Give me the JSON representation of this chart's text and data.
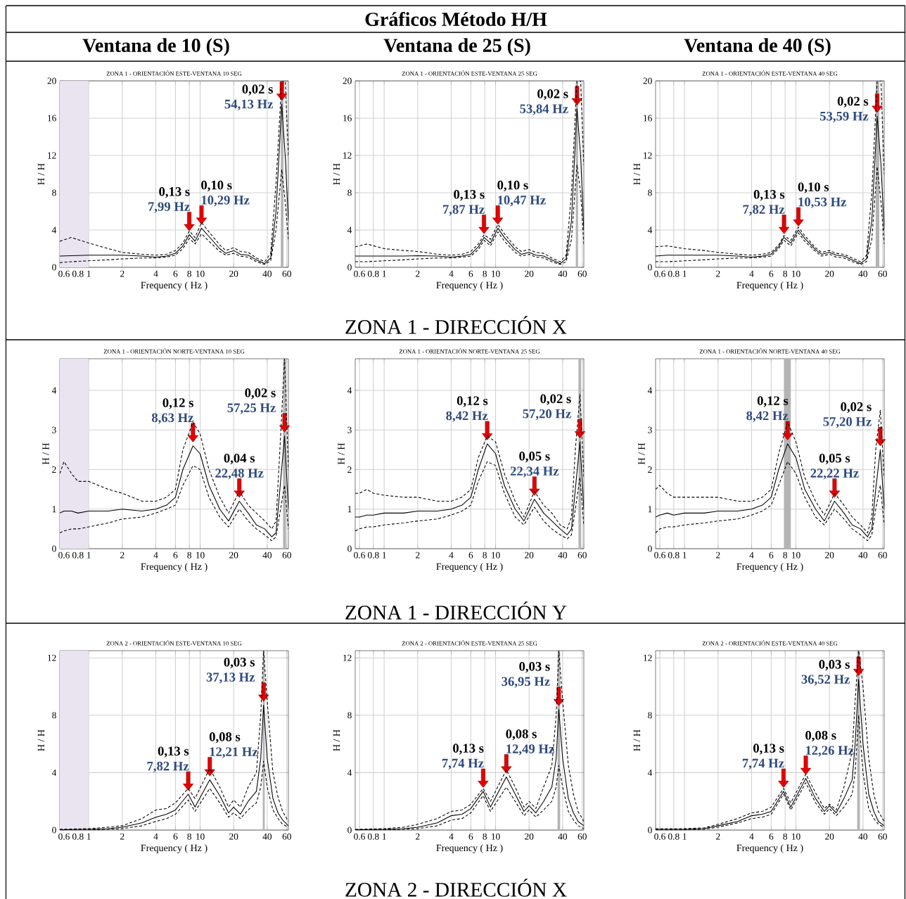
{
  "chart_data": [
    {
      "type": "other",
      "title": "Gráficos Método H/H",
      "annotations": [
        "Ventana de 10 (S)",
        "Ventana de 25 (S)",
        "Ventana de 40 (S)",
        "ZONA 1 - DIRECCIÓN X",
        "ZONA 1 - DIRECCIÓN Y",
        "ZONA 2 - DIRECCIÓN X"
      ]
    },
    {
      "type": "line",
      "title": "ZONA 1 - ORIENTACIÓN ESTE-VENTANA 10 SEG",
      "xlabel": "Frequency ( Hz )",
      "ylabel": "H / H",
      "log": "x",
      "grid": true,
      "xlim": [
        0.55,
        62
      ],
      "xticks": [
        0.6,
        0.8,
        1,
        2,
        4,
        6,
        8,
        10,
        20,
        40,
        60
      ],
      "ylim": [
        0,
        20
      ],
      "yticks": [
        0,
        4,
        8,
        12,
        16,
        20
      ],
      "x": [
        0.55,
        0.7,
        1,
        1.5,
        2,
        3,
        4,
        5,
        6,
        7,
        8,
        9,
        10.3,
        12,
        15,
        17,
        20,
        23,
        27,
        32,
        38,
        43,
        48,
        54,
        58,
        62
      ],
      "series": [
        {
          "color": "#000000",
          "line_style": "solid",
          "values": [
            1.2,
            1.25,
            1.3,
            1.3,
            1.3,
            1.2,
            1.1,
            1.2,
            1.5,
            2.3,
            3.5,
            2.8,
            4.2,
            3.3,
            2.0,
            1.5,
            1.8,
            1.4,
            1.3,
            0.8,
            0.4,
            1.0,
            6,
            17.5,
            12,
            5
          ]
        },
        {
          "color": "#000000",
          "line_style": "dashed",
          "values": [
            2.8,
            3.2,
            2.6,
            2.0,
            1.6,
            1.4,
            1.3,
            1.4,
            1.8,
            2.6,
            3.9,
            3.2,
            4.8,
            3.8,
            2.4,
            1.8,
            2.1,
            1.7,
            1.6,
            1.0,
            0.6,
            1.5,
            9,
            20,
            20,
            12
          ]
        },
        {
          "color": "#000000",
          "line_style": "dashed",
          "values": [
            0.5,
            0.6,
            0.7,
            0.8,
            0.9,
            1.0,
            1.0,
            1.1,
            1.3,
            2.0,
            3.1,
            2.5,
            3.6,
            2.8,
            1.7,
            1.3,
            1.5,
            1.2,
            1.1,
            0.6,
            0.3,
            0.7,
            4,
            10.5,
            7,
            3
          ]
        }
      ],
      "bands": [
        {
          "axis": "x",
          "from": 0.55,
          "to": 1,
          "color": "#e9e4ef"
        },
        {
          "axis": "x",
          "from": 53,
          "to": 56,
          "color": "#b4b4b4"
        }
      ],
      "annotations": [
        {
          "text": "0,13 s",
          "x": 7.99,
          "y": 3.5
        },
        {
          "text": "7,99 Hz",
          "x": 7.99,
          "y": 3.5
        },
        {
          "text": "0,10 s",
          "x": 10.29,
          "y": 4.2
        },
        {
          "text": "10,29 Hz",
          "x": 10.29,
          "y": 4.2
        },
        {
          "text": "0,02 s",
          "x": 54.13,
          "y": 17.5
        },
        {
          "text": "54,13 Hz",
          "x": 54.13,
          "y": 17.5
        }
      ]
    },
    {
      "type": "line",
      "title": "ZONA 1 - ORIENTACIÓN ESTE-VENTANA 25 SEG",
      "xlabel": "Frequency ( Hz )",
      "ylabel": "H / H",
      "log": "x",
      "grid": true,
      "xlim": [
        0.55,
        62
      ],
      "xticks": [
        0.6,
        0.8,
        1,
        2,
        4,
        6,
        8,
        10,
        20,
        40,
        60
      ],
      "ylim": [
        0,
        20
      ],
      "yticks": [
        0,
        4,
        8,
        12,
        16,
        20
      ],
      "x": [
        0.55,
        0.7,
        1,
        1.5,
        2,
        3,
        4,
        5,
        6,
        7,
        7.9,
        9,
        10.5,
        12,
        15,
        17,
        20,
        23,
        27,
        32,
        38,
        43,
        48,
        53.8,
        58,
        62
      ],
      "series": [
        {
          "color": "#000000",
          "line_style": "solid",
          "values": [
            1.2,
            1.2,
            1.2,
            1.2,
            1.25,
            1.2,
            1.1,
            1.2,
            1.4,
            2.2,
            3.2,
            2.6,
            4.2,
            3.2,
            1.9,
            1.4,
            1.6,
            1.3,
            1.2,
            0.8,
            0.4,
            0.9,
            5,
            17,
            12,
            4
          ]
        },
        {
          "color": "#000000",
          "line_style": "dashed",
          "values": [
            2.2,
            2.5,
            2.0,
            1.8,
            1.7,
            1.4,
            1.3,
            1.4,
            1.7,
            2.5,
            3.5,
            3.0,
            4.6,
            3.6,
            2.2,
            1.7,
            1.9,
            1.6,
            1.5,
            1.0,
            0.6,
            1.3,
            8,
            20,
            20,
            11
          ]
        },
        {
          "color": "#000000",
          "line_style": "dashed",
          "values": [
            0.6,
            0.6,
            0.7,
            0.8,
            0.9,
            1.0,
            1.0,
            1.1,
            1.2,
            1.9,
            2.9,
            2.3,
            3.8,
            2.8,
            1.6,
            1.2,
            1.4,
            1.1,
            1.0,
            0.6,
            0.3,
            0.6,
            3,
            11,
            8,
            2.5
          ]
        }
      ],
      "bands": [
        {
          "axis": "x",
          "from": 52.5,
          "to": 55,
          "color": "#b4b4b4"
        }
      ],
      "annotations": [
        {
          "text": "0,13 s",
          "x": 7.87,
          "y": 3.2
        },
        {
          "text": "7,87 Hz",
          "x": 7.87,
          "y": 3.2
        },
        {
          "text": "0,10 s",
          "x": 10.47,
          "y": 4.2
        },
        {
          "text": "10,47 Hz",
          "x": 10.47,
          "y": 4.2
        },
        {
          "text": "0,02 s",
          "x": 53.84,
          "y": 17
        },
        {
          "text": "53,84 Hz",
          "x": 53.84,
          "y": 17
        }
      ]
    },
    {
      "type": "line",
      "title": "ZONA 1 - ORIENTACIÓN ESTE-VENTANA 40 SEG",
      "xlabel": "Frequency ( Hz )",
      "ylabel": "H / H",
      "log": "x",
      "grid": true,
      "xlim": [
        0.55,
        62
      ],
      "xticks": [
        0.6,
        0.8,
        1,
        2,
        4,
        6,
        8,
        10,
        20,
        40,
        60
      ],
      "ylim": [
        0,
        20
      ],
      "yticks": [
        0,
        4,
        8,
        12,
        16,
        20
      ],
      "x": [
        0.55,
        0.7,
        1,
        1.5,
        2,
        3,
        4,
        5,
        6,
        7,
        7.8,
        9,
        10.5,
        12,
        15,
        17,
        20,
        23,
        27,
        32,
        38,
        43,
        48,
        53.6,
        58,
        62
      ],
      "series": [
        {
          "color": "#000000",
          "line_style": "solid",
          "values": [
            1.2,
            1.3,
            1.3,
            1.3,
            1.3,
            1.2,
            1.1,
            1.2,
            1.4,
            2.2,
            3.2,
            2.6,
            4.0,
            3.1,
            1.9,
            1.4,
            1.6,
            1.3,
            1.2,
            0.8,
            0.4,
            0.9,
            5,
            16.2,
            11,
            4
          ]
        },
        {
          "color": "#000000",
          "line_style": "dashed",
          "values": [
            2.2,
            2.3,
            2.0,
            1.8,
            1.6,
            1.4,
            1.3,
            1.4,
            1.6,
            2.4,
            3.4,
            2.9,
            4.3,
            3.4,
            2.1,
            1.6,
            1.8,
            1.5,
            1.4,
            1.0,
            0.6,
            1.3,
            8,
            20,
            20,
            10
          ]
        },
        {
          "color": "#000000",
          "line_style": "dashed",
          "values": [
            0.6,
            0.6,
            0.7,
            0.8,
            0.9,
            1.0,
            1.0,
            1.1,
            1.2,
            2.0,
            2.9,
            2.3,
            3.7,
            2.8,
            1.7,
            1.2,
            1.4,
            1.1,
            1.0,
            0.6,
            0.3,
            0.6,
            3,
            10.8,
            7,
            2.5
          ]
        }
      ],
      "bands": [
        {
          "axis": "x",
          "from": 52,
          "to": 56,
          "color": "#b4b4b4"
        }
      ],
      "annotations": [
        {
          "text": "0,13 s",
          "x": 7.82,
          "y": 3.2
        },
        {
          "text": "7,82 Hz",
          "x": 7.82,
          "y": 3.2
        },
        {
          "text": "0,10 s",
          "x": 10.53,
          "y": 4.0
        },
        {
          "text": "10,53 Hz",
          "x": 10.53,
          "y": 4.0
        },
        {
          "text": "0,02 s",
          "x": 53.59,
          "y": 16.2
        },
        {
          "text": "53,59 Hz",
          "x": 53.59,
          "y": 16.2
        }
      ]
    },
    {
      "type": "line",
      "title": "ZONA 1 - ORIENTACIÓN NORTE-VENTANA 10 SEG",
      "xlabel": "Frequency ( Hz )",
      "ylabel": "H / H",
      "log": "x",
      "grid": true,
      "xlim": [
        0.55,
        62
      ],
      "xticks": [
        0.6,
        0.8,
        1,
        2,
        4,
        6,
        8,
        10,
        20,
        40,
        60
      ],
      "ylim": [
        0,
        4.8
      ],
      "yticks": [
        0,
        1,
        2,
        3,
        4
      ],
      "x": [
        0.55,
        0.6,
        0.7,
        0.8,
        1,
        1.5,
        2,
        3,
        4,
        5,
        6,
        7,
        8.63,
        10,
        12,
        15,
        18,
        22.48,
        27,
        32,
        38,
        44,
        48,
        52,
        57.25,
        62
      ],
      "series": [
        {
          "color": "#000000",
          "line_style": "solid",
          "values": [
            0.9,
            0.95,
            0.95,
            0.9,
            0.95,
            0.95,
            1.0,
            0.95,
            1.0,
            1.1,
            1.3,
            2.0,
            2.6,
            2.4,
            1.6,
            1.0,
            0.7,
            1.2,
            0.9,
            0.6,
            0.5,
            0.3,
            0.4,
            1.5,
            2.85,
            1.0
          ]
        },
        {
          "color": "#000000",
          "line_style": "dashed",
          "values": [
            1.9,
            2.2,
            1.9,
            1.7,
            1.7,
            1.5,
            1.4,
            1.2,
            1.2,
            1.3,
            1.5,
            2.5,
            3.2,
            2.9,
            2.0,
            1.3,
            0.9,
            1.45,
            1.1,
            0.9,
            0.7,
            0.5,
            0.7,
            2.5,
            4.8,
            2.0
          ]
        },
        {
          "color": "#000000",
          "line_style": "dashed",
          "values": [
            0.4,
            0.45,
            0.5,
            0.5,
            0.55,
            0.65,
            0.75,
            0.8,
            0.9,
            1.0,
            1.1,
            1.6,
            2.1,
            2.0,
            1.3,
            0.8,
            0.55,
            1.0,
            0.7,
            0.5,
            0.35,
            0.2,
            0.3,
            0.9,
            1.6,
            0.5
          ]
        }
      ],
      "bands": [
        {
          "axis": "x",
          "from": 0.55,
          "to": 1,
          "color": "#e9e4ef"
        },
        {
          "axis": "x",
          "from": 55.5,
          "to": 59,
          "color": "#b4b4b4"
        }
      ],
      "annotations": [
        {
          "text": "0,12 s",
          "x": 8.63,
          "y": 2.6
        },
        {
          "text": "8,63 Hz",
          "x": 8.63,
          "y": 2.6
        },
        {
          "text": "0,04 s",
          "x": 22.48,
          "y": 1.2
        },
        {
          "text": "22,48 Hz",
          "x": 22.48,
          "y": 1.2
        },
        {
          "text": "0,02 s",
          "x": 57.25,
          "y": 2.85
        },
        {
          "text": "57,25 Hz",
          "x": 57.25,
          "y": 2.85
        }
      ]
    },
    {
      "type": "line",
      "title": "ZONA 1 - ORIENTACIÓN NORTE-VENTANA 25 SEG",
      "xlabel": "Frequency ( Hz )",
      "ylabel": "H / H",
      "log": "x",
      "grid": true,
      "xlim": [
        0.55,
        62
      ],
      "xticks": [
        0.6,
        0.8,
        1,
        2,
        4,
        6,
        8,
        10,
        20,
        40,
        60
      ],
      "ylim": [
        0,
        4.8
      ],
      "yticks": [
        0,
        1,
        2,
        3,
        4
      ],
      "x": [
        0.55,
        0.6,
        0.7,
        0.8,
        1,
        1.5,
        2,
        3,
        4,
        5,
        6,
        7,
        8.42,
        10,
        12,
        15,
        18,
        22.34,
        27,
        32,
        38,
        44,
        48,
        52,
        57.2,
        62
      ],
      "series": [
        {
          "color": "#000000",
          "line_style": "solid",
          "values": [
            0.8,
            0.8,
            0.85,
            0.85,
            0.9,
            0.9,
            0.95,
            0.95,
            1.0,
            1.1,
            1.3,
            2.0,
            2.65,
            2.4,
            1.6,
            1.0,
            0.7,
            1.25,
            0.9,
            0.7,
            0.5,
            0.35,
            0.5,
            1.5,
            2.7,
            1.0
          ]
        },
        {
          "color": "#000000",
          "line_style": "dashed",
          "values": [
            1.4,
            1.4,
            1.5,
            1.4,
            1.35,
            1.3,
            1.3,
            1.2,
            1.2,
            1.3,
            1.5,
            2.3,
            2.85,
            2.7,
            1.9,
            1.2,
            0.8,
            1.45,
            1.1,
            0.9,
            0.6,
            0.5,
            0.8,
            2.5,
            3.9,
            1.8
          ]
        },
        {
          "color": "#000000",
          "line_style": "dashed",
          "values": [
            0.45,
            0.5,
            0.55,
            0.55,
            0.6,
            0.65,
            0.7,
            0.75,
            0.85,
            0.95,
            1.1,
            1.7,
            2.2,
            2.1,
            1.4,
            0.8,
            0.6,
            1.05,
            0.7,
            0.5,
            0.35,
            0.25,
            0.35,
            1.0,
            1.8,
            0.6
          ]
        }
      ],
      "bands": [
        {
          "axis": "x",
          "from": 55.5,
          "to": 58.5,
          "color": "#b4b4b4"
        }
      ],
      "annotations": [
        {
          "text": "0,12 s",
          "x": 8.42,
          "y": 2.65
        },
        {
          "text": "8,42 Hz",
          "x": 8.42,
          "y": 2.65
        },
        {
          "text": "0,05 s",
          "x": 22.34,
          "y": 1.25
        },
        {
          "text": "22,34 Hz",
          "x": 22.34,
          "y": 1.25
        },
        {
          "text": "0,02 s",
          "x": 57.2,
          "y": 2.7
        },
        {
          "text": "57,20 Hz",
          "x": 57.2,
          "y": 2.7
        }
      ]
    },
    {
      "type": "line",
      "title": "ZONA 1 - ORIENTACIÓN NORTE-VENTANA 40 SEG",
      "xlabel": "Frequency ( Hz )",
      "ylabel": "H / H",
      "log": "x",
      "grid": true,
      "xlim": [
        0.55,
        62
      ],
      "xticks": [
        0.6,
        0.8,
        1,
        2,
        4,
        6,
        8,
        10,
        20,
        40,
        60
      ],
      "ylim": [
        0,
        4.8
      ],
      "yticks": [
        0,
        1,
        2,
        3,
        4
      ],
      "x": [
        0.55,
        0.6,
        0.7,
        0.8,
        1,
        1.5,
        2,
        3,
        4,
        5,
        6,
        7,
        8.42,
        10,
        12,
        15,
        18,
        22.22,
        27,
        32,
        38,
        44,
        48,
        52,
        57.2,
        62
      ],
      "series": [
        {
          "color": "#000000",
          "line_style": "solid",
          "values": [
            0.8,
            0.85,
            0.9,
            0.85,
            0.9,
            0.9,
            0.95,
            0.95,
            1.0,
            1.1,
            1.3,
            2.0,
            2.65,
            2.3,
            1.5,
            1.0,
            0.7,
            1.2,
            0.9,
            0.6,
            0.5,
            0.3,
            0.5,
            1.5,
            2.5,
            1.0
          ]
        },
        {
          "color": "#000000",
          "line_style": "dashed",
          "values": [
            1.5,
            1.6,
            1.4,
            1.3,
            1.3,
            1.3,
            1.3,
            1.2,
            1.2,
            1.3,
            1.5,
            2.4,
            3.2,
            2.7,
            1.8,
            1.2,
            0.85,
            1.4,
            1.1,
            0.8,
            0.6,
            0.4,
            0.8,
            2.5,
            3.5,
            1.8
          ]
        },
        {
          "color": "#000000",
          "line_style": "dashed",
          "values": [
            0.4,
            0.5,
            0.55,
            0.55,
            0.6,
            0.65,
            0.7,
            0.75,
            0.85,
            0.95,
            1.1,
            1.6,
            2.2,
            1.9,
            1.3,
            0.8,
            0.6,
            1.0,
            0.75,
            0.5,
            0.35,
            0.2,
            0.35,
            1.0,
            1.6,
            0.6
          ]
        }
      ],
      "bands": [
        {
          "axis": "x",
          "from": 7.8,
          "to": 9,
          "color": "#b4b4b4"
        }
      ],
      "annotations": [
        {
          "text": "0,12 s",
          "x": 8.42,
          "y": 2.65
        },
        {
          "text": "8,42 Hz",
          "x": 8.42,
          "y": 2.65
        },
        {
          "text": "0,05 s",
          "x": 22.22,
          "y": 1.2
        },
        {
          "text": "22,22 Hz",
          "x": 22.22,
          "y": 1.2
        },
        {
          "text": "0,02 s",
          "x": 57.2,
          "y": 2.5
        },
        {
          "text": "57,20 Hz",
          "x": 57.2,
          "y": 2.5
        }
      ]
    },
    {
      "type": "line",
      "title": "ZONA 2 - ORIENTACIÓN ESTE-VENTANA 10 SEG",
      "xlabel": "Frequency ( Hz )",
      "ylabel": "H / H",
      "log": "x",
      "grid": true,
      "xlim": [
        0.55,
        62
      ],
      "xticks": [
        0.6,
        0.8,
        1,
        2,
        4,
        6,
        8,
        10,
        20,
        40,
        60
      ],
      "ylim": [
        0,
        12.5
      ],
      "yticks": [
        0,
        4,
        8,
        12
      ],
      "x": [
        0.55,
        1,
        1.5,
        2,
        3,
        4,
        5,
        6,
        7.82,
        9,
        12.21,
        15,
        18,
        20,
        23,
        27,
        32,
        35,
        37.13,
        40,
        45,
        50,
        55,
        62
      ],
      "series": [
        {
          "color": "#000000",
          "line_style": "solid",
          "values": [
            0.02,
            0.05,
            0.1,
            0.2,
            0.5,
            0.9,
            1.1,
            1.4,
            2.5,
            1.6,
            3.5,
            2.4,
            1.2,
            1.6,
            1.1,
            2.0,
            2.7,
            5,
            8.7,
            5,
            2.2,
            1.2,
            0.7,
            0.3
          ]
        },
        {
          "color": "#000000",
          "line_style": "dashed",
          "values": [
            0.05,
            0.1,
            0.2,
            0.3,
            0.8,
            1.4,
            1.5,
            1.9,
            2.9,
            2.2,
            4.3,
            3.0,
            1.6,
            2.1,
            1.6,
            3,
            4.0,
            8,
            12.5,
            9,
            4,
            2.3,
            1.3,
            0.6
          ]
        },
        {
          "color": "#000000",
          "line_style": "dashed",
          "values": [
            0.01,
            0.02,
            0.05,
            0.1,
            0.3,
            0.6,
            0.8,
            1.1,
            2.1,
            1.3,
            2.9,
            1.9,
            0.9,
            1.2,
            0.8,
            1.4,
            1.9,
            3,
            4.8,
            3,
            1.4,
            0.8,
            0.4,
            0.2
          ]
        }
      ],
      "bands": [
        {
          "axis": "x",
          "from": 0.55,
          "to": 1,
          "color": "#e9e4ef"
        },
        {
          "axis": "x",
          "from": 36.5,
          "to": 38,
          "color": "#b4b4b4"
        }
      ],
      "annotations": [
        {
          "text": "0,13 s",
          "x": 7.82,
          "y": 2.5
        },
        {
          "text": "7,82 Hz",
          "x": 7.82,
          "y": 2.5
        },
        {
          "text": "0,08 s",
          "x": 12.21,
          "y": 3.5
        },
        {
          "text": "12,21 Hz",
          "x": 12.21,
          "y": 3.5
        },
        {
          "text": "0,03 s",
          "x": 37.13,
          "y": 8.7
        },
        {
          "text": "37,13 Hz",
          "x": 37.13,
          "y": 8.7
        }
      ]
    },
    {
      "type": "line",
      "title": "ZONA 2 - ORIENTACIÓN ESTE-VENTANA 25 SEG",
      "xlabel": "Frequency ( Hz )",
      "ylabel": "H / H",
      "log": "x",
      "grid": true,
      "xlim": [
        0.55,
        62
      ],
      "xticks": [
        0.6,
        0.8,
        1,
        2,
        4,
        6,
        8,
        10,
        20,
        40,
        60
      ],
      "ylim": [
        0,
        12.5
      ],
      "yticks": [
        0,
        4,
        8,
        12
      ],
      "x": [
        0.55,
        1,
        1.5,
        2,
        3,
        4,
        5,
        6,
        7.74,
        9,
        12.49,
        15,
        18,
        20,
        23,
        27,
        32,
        35,
        36.95,
        40,
        45,
        50,
        55,
        62
      ],
      "series": [
        {
          "color": "#000000",
          "line_style": "solid",
          "values": [
            0.02,
            0.05,
            0.1,
            0.2,
            0.5,
            1.0,
            1.1,
            1.5,
            2.7,
            1.6,
            3.7,
            2.5,
            1.3,
            1.7,
            1.2,
            2.0,
            3.0,
            5,
            8.4,
            5,
            2.2,
            1.2,
            0.6,
            0.3
          ]
        },
        {
          "color": "#000000",
          "line_style": "dashed",
          "values": [
            0.05,
            0.1,
            0.2,
            0.4,
            0.8,
            1.3,
            1.4,
            1.8,
            2.9,
            2.0,
            4.2,
            3.0,
            1.6,
            2.0,
            1.5,
            3.0,
            4.5,
            8,
            12.5,
            9,
            4.5,
            2.5,
            1.3,
            0.6
          ]
        },
        {
          "color": "#000000",
          "line_style": "dashed",
          "values": [
            0.01,
            0.02,
            0.05,
            0.1,
            0.3,
            0.7,
            0.8,
            1.2,
            2.4,
            1.3,
            3.0,
            2.0,
            1.0,
            1.4,
            0.9,
            1.4,
            2.0,
            3,
            4.5,
            3,
            1.3,
            0.7,
            0.3,
            0.1
          ]
        }
      ],
      "bands": [
        {
          "axis": "x",
          "from": 36,
          "to": 38,
          "color": "#b4b4b4"
        }
      ],
      "annotations": [
        {
          "text": "0,13 s",
          "x": 7.74,
          "y": 2.7
        },
        {
          "text": "7,74 Hz",
          "x": 7.74,
          "y": 2.7
        },
        {
          "text": "0,08 s",
          "x": 12.49,
          "y": 3.7
        },
        {
          "text": "12,49 Hz",
          "x": 12.49,
          "y": 3.7
        },
        {
          "text": "0,03 s",
          "x": 36.95,
          "y": 8.4
        },
        {
          "text": "36,95 Hz",
          "x": 36.95,
          "y": 8.4
        }
      ]
    },
    {
      "type": "line",
      "title": "ZONA 2 - ORIENTACIÓN ESTE-VENTANA 40 SEG",
      "xlabel": "Frequency ( Hz )",
      "ylabel": "H / H",
      "log": "x",
      "grid": true,
      "xlim": [
        0.55,
        62
      ],
      "xticks": [
        0.6,
        0.8,
        1,
        2,
        4,
        6,
        8,
        10,
        20,
        40,
        60
      ],
      "ylim": [
        0,
        12.5
      ],
      "yticks": [
        0,
        4,
        8,
        12
      ],
      "x": [
        0.55,
        1,
        1.5,
        2,
        3,
        4,
        5,
        6,
        7.74,
        9,
        12.26,
        15,
        18,
        20,
        23,
        27,
        32,
        34,
        36.52,
        40,
        45,
        50,
        55,
        62
      ],
      "series": [
        {
          "color": "#000000",
          "line_style": "solid",
          "values": [
            0.05,
            0.05,
            0.1,
            0.3,
            0.6,
            1.0,
            1.1,
            1.3,
            2.7,
            1.6,
            3.6,
            2.2,
            1.3,
            1.7,
            1.2,
            2.2,
            3.5,
            6,
            10.5,
            6,
            2.5,
            1.3,
            0.6,
            0.3
          ]
        },
        {
          "color": "#000000",
          "line_style": "dashed",
          "values": [
            0.1,
            0.1,
            0.15,
            0.4,
            0.8,
            1.2,
            1.3,
            1.6,
            2.9,
            1.9,
            3.9,
            2.6,
            1.5,
            1.8,
            1.4,
            3.0,
            5.5,
            9,
            12.5,
            10,
            5,
            2.5,
            1.3,
            0.6
          ]
        },
        {
          "color": "#000000",
          "line_style": "dashed",
          "values": [
            0.02,
            0.03,
            0.05,
            0.2,
            0.5,
            0.8,
            0.9,
            1.1,
            2.5,
            1.4,
            3.3,
            1.9,
            1.1,
            1.5,
            1.0,
            1.6,
            2.5,
            4,
            8,
            4,
            1.5,
            0.8,
            0.4,
            0.2
          ]
        }
      ],
      "bands": [
        {
          "axis": "x",
          "from": 35.5,
          "to": 37.5,
          "color": "#b4b4b4"
        }
      ],
      "annotations": [
        {
          "text": "0,13 s",
          "x": 7.74,
          "y": 2.7
        },
        {
          "text": "7,74 Hz",
          "x": 7.74,
          "y": 2.7
        },
        {
          "text": "0,08 s",
          "x": 12.26,
          "y": 3.6
        },
        {
          "text": "12,26 Hz",
          "x": 12.26,
          "y": 3.6
        },
        {
          "text": "0,03 s",
          "x": 36.52,
          "y": 10.5
        },
        {
          "text": "36,52 Hz",
          "x": 36.52,
          "y": 10.5
        }
      ]
    }
  ]
}
